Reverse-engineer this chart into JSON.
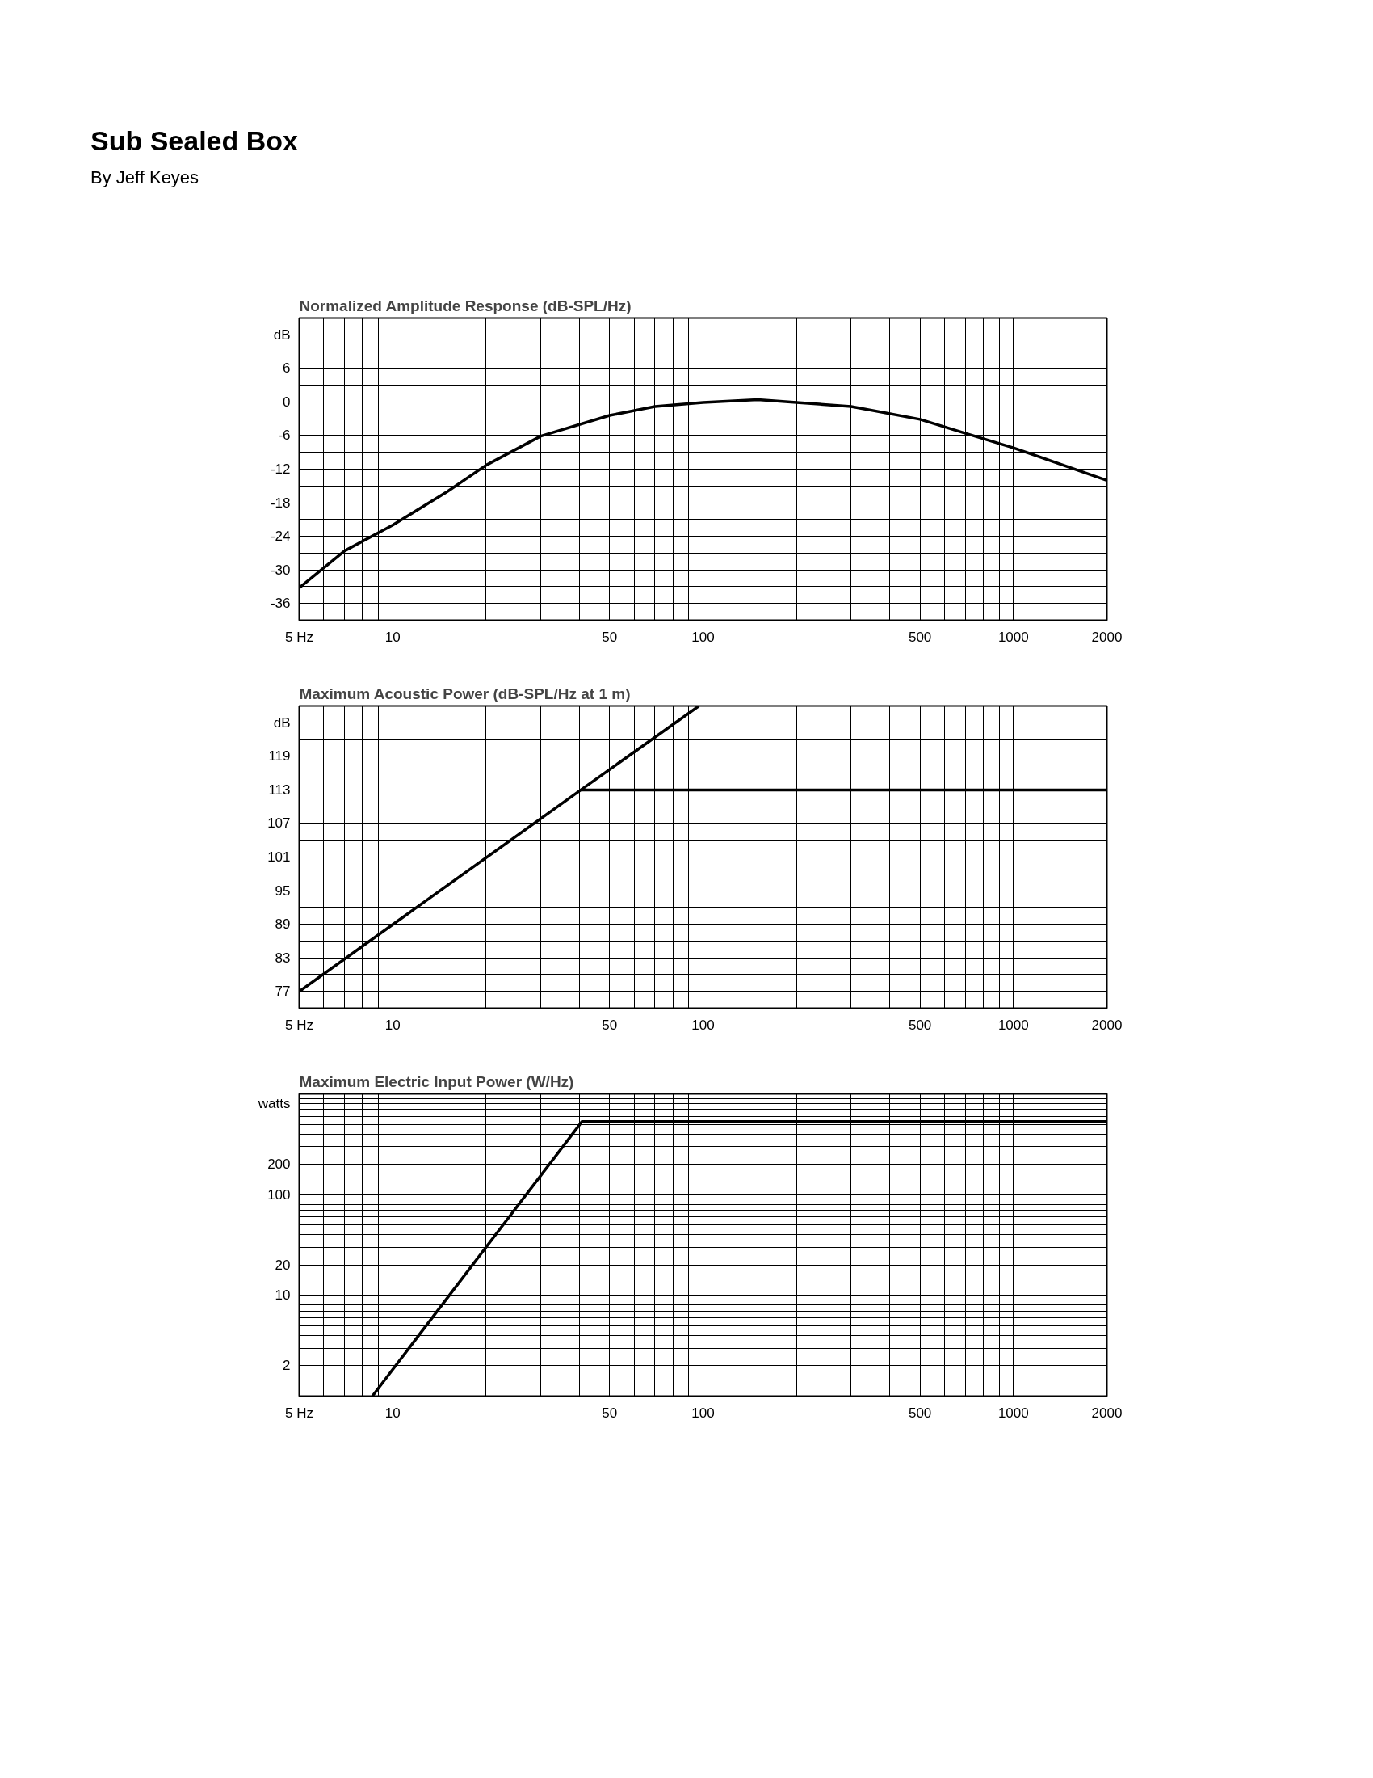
{
  "chart_data": [
    {
      "type": "line",
      "title": "Normalized Amplitude Response (dB-SPL/Hz)",
      "annotations": [
        "Sub Sealed Box",
        "By Jeff Keyes"
      ],
      "log": "x",
      "grid": true,
      "marker": "none",
      "line_style": "solid",
      "xlim": [
        5,
        2000
      ],
      "xticks": [
        {
          "value": 5,
          "label": "5 Hz"
        },
        {
          "value": 6,
          "label": null
        },
        {
          "value": 7,
          "label": null
        },
        {
          "value": 8,
          "label": null
        },
        {
          "value": 9,
          "label": null
        },
        10,
        {
          "value": 20,
          "label": null
        },
        {
          "value": 30,
          "label": null
        },
        {
          "value": 40,
          "label": null
        },
        50,
        {
          "value": 60,
          "label": null
        },
        {
          "value": 70,
          "label": null
        },
        {
          "value": 80,
          "label": null
        },
        {
          "value": 90,
          "label": null
        },
        100,
        {
          "value": 200,
          "label": null
        },
        {
          "value": 300,
          "label": null
        },
        {
          "value": 400,
          "label": null
        },
        500,
        {
          "value": 600,
          "label": null
        },
        {
          "value": 700,
          "label": null
        },
        {
          "value": 800,
          "label": null
        },
        {
          "value": 900,
          "label": null
        },
        1000,
        2000
      ],
      "ylim": [
        -39,
        15
      ],
      "yticks": [
        -36,
        {
          "value": -33,
          "label": null
        },
        -30,
        {
          "value": -27,
          "label": null
        },
        -24,
        {
          "value": -21,
          "label": null
        },
        -18,
        {
          "value": -15,
          "label": null
        },
        -12,
        {
          "value": -9,
          "label": null
        },
        -6,
        {
          "value": -3,
          "label": null
        },
        0,
        {
          "value": 3,
          "label": null
        },
        6,
        {
          "value": 9,
          "label": null
        },
        {
          "value": 12,
          "label": "dB"
        }
      ],
      "series": [
        {
          "color": "#000000",
          "x": [
            5,
            7,
            10,
            15,
            20,
            30,
            50,
            70,
            100,
            150,
            200,
            300,
            500,
            700,
            1000,
            2000
          ],
          "values": [
            -33.2,
            -26.6,
            -22.0,
            -16.0,
            -11.3,
            -6.1,
            -2.4,
            -0.8,
            -0.1,
            0.4,
            -0.1,
            -0.8,
            -3.1,
            -5.6,
            -8.2,
            -14.0
          ]
        }
      ]
    },
    {
      "type": "line",
      "title": "Maximum Acoustic Power (dB-SPL/Hz at 1 m)",
      "log": "x",
      "grid": true,
      "marker": "none",
      "line_style": "solid",
      "xlim": [
        5,
        2000
      ],
      "xticks": [
        {
          "value": 5,
          "label": "5 Hz"
        },
        {
          "value": 6,
          "label": null
        },
        {
          "value": 7,
          "label": null
        },
        {
          "value": 8,
          "label": null
        },
        {
          "value": 9,
          "label": null
        },
        10,
        {
          "value": 20,
          "label": null
        },
        {
          "value": 30,
          "label": null
        },
        {
          "value": 40,
          "label": null
        },
        50,
        {
          "value": 60,
          "label": null
        },
        {
          "value": 70,
          "label": null
        },
        {
          "value": 80,
          "label": null
        },
        {
          "value": 90,
          "label": null
        },
        100,
        {
          "value": 200,
          "label": null
        },
        {
          "value": 300,
          "label": null
        },
        {
          "value": 400,
          "label": null
        },
        500,
        {
          "value": 600,
          "label": null
        },
        {
          "value": 700,
          "label": null
        },
        {
          "value": 800,
          "label": null
        },
        {
          "value": 900,
          "label": null
        },
        1000,
        2000
      ],
      "ylim": [
        74,
        128
      ],
      "yticks": [
        77,
        {
          "value": 80,
          "label": null
        },
        83,
        {
          "value": 86,
          "label": null
        },
        89,
        {
          "value": 92,
          "label": null
        },
        95,
        {
          "value": 98,
          "label": null
        },
        101,
        {
          "value": 104,
          "label": null
        },
        107,
        {
          "value": 110,
          "label": null
        },
        113,
        {
          "value": 116,
          "label": null
        },
        119,
        {
          "value": 122,
          "label": null
        },
        {
          "value": 125,
          "label": "dB"
        }
      ],
      "series": [
        {
          "color": "#000000",
          "x": [
            5,
            40.4,
            97
          ],
          "values": [
            77,
            113,
            128
          ]
        },
        {
          "color": "#000000",
          "x": [
            40.4,
            2000
          ],
          "values": [
            113,
            113
          ]
        }
      ]
    },
    {
      "type": "line",
      "title": "Maximum Electric Input Power (W/Hz)",
      "log": "xy",
      "grid": true,
      "marker": "none",
      "line_style": "solid",
      "xlim": [
        5,
        2000
      ],
      "xticks": [
        {
          "value": 5,
          "label": "5 Hz"
        },
        {
          "value": 6,
          "label": null
        },
        {
          "value": 7,
          "label": null
        },
        {
          "value": 8,
          "label": null
        },
        {
          "value": 9,
          "label": null
        },
        10,
        {
          "value": 20,
          "label": null
        },
        {
          "value": 30,
          "label": null
        },
        {
          "value": 40,
          "label": null
        },
        50,
        {
          "value": 60,
          "label": null
        },
        {
          "value": 70,
          "label": null
        },
        {
          "value": 80,
          "label": null
        },
        {
          "value": 90,
          "label": null
        },
        100,
        {
          "value": 200,
          "label": null
        },
        {
          "value": 300,
          "label": null
        },
        {
          "value": 400,
          "label": null
        },
        500,
        {
          "value": 600,
          "label": null
        },
        {
          "value": 700,
          "label": null
        },
        {
          "value": 800,
          "label": null
        },
        {
          "value": 900,
          "label": null
        },
        1000,
        2000
      ],
      "ylim": [
        1,
        1000
      ],
      "yticks": [
        2,
        {
          "value": 3,
          "label": null
        },
        {
          "value": 4,
          "label": null
        },
        {
          "value": 5,
          "label": null
        },
        {
          "value": 6,
          "label": null
        },
        {
          "value": 7,
          "label": null
        },
        {
          "value": 8,
          "label": null
        },
        {
          "value": 9,
          "label": null
        },
        10,
        20,
        {
          "value": 30,
          "label": null
        },
        {
          "value": 40,
          "label": null
        },
        {
          "value": 50,
          "label": null
        },
        {
          "value": 60,
          "label": null
        },
        {
          "value": 70,
          "label": null
        },
        {
          "value": 80,
          "label": null
        },
        {
          "value": 90,
          "label": null
        },
        100,
        200,
        {
          "value": 300,
          "label": null
        },
        {
          "value": 400,
          "label": null
        },
        {
          "value": 500,
          "label": null
        },
        {
          "value": 600,
          "label": null
        },
        {
          "value": 700,
          "label": null
        },
        {
          "value": 800,
          "label": "watts"
        },
        {
          "value": 900,
          "label": null
        },
        {
          "value": 1000,
          "label": null
        }
      ],
      "series": [
        {
          "color": "#000000",
          "x": [
            8.6,
            40.7,
            2000
          ],
          "values": [
            1,
            530,
            530
          ]
        }
      ]
    }
  ]
}
